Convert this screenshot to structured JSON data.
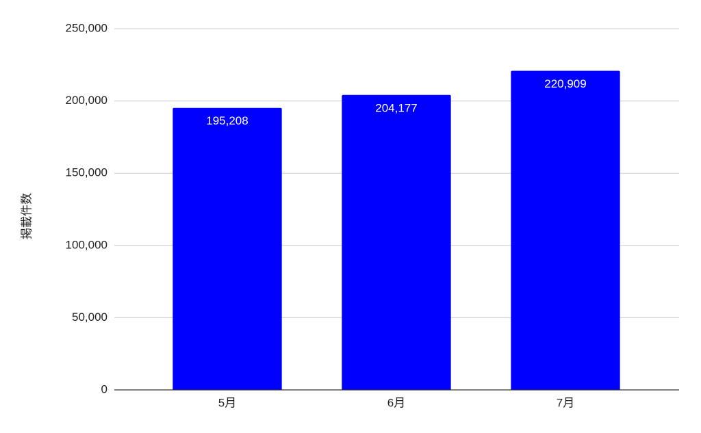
{
  "chart_data": {
    "type": "bar",
    "y_label": "掲載件数",
    "categories": [
      "5月",
      "6月",
      "7月"
    ],
    "values": [
      195208,
      204177,
      220909
    ],
    "value_labels": [
      "195,208",
      "204,177",
      "220,909"
    ],
    "color": "#0000ff",
    "ylim": [
      0,
      250000
    ],
    "yticks": [
      0,
      {
        "value": 50000,
        "label": "50,000"
      },
      {
        "value": 100000,
        "label": "100,000"
      },
      {
        "value": 150000,
        "label": "150,000"
      },
      {
        "value": 200000,
        "label": "200,000"
      },
      {
        "value": 250000,
        "label": "250,000"
      }
    ],
    "grid": true
  }
}
